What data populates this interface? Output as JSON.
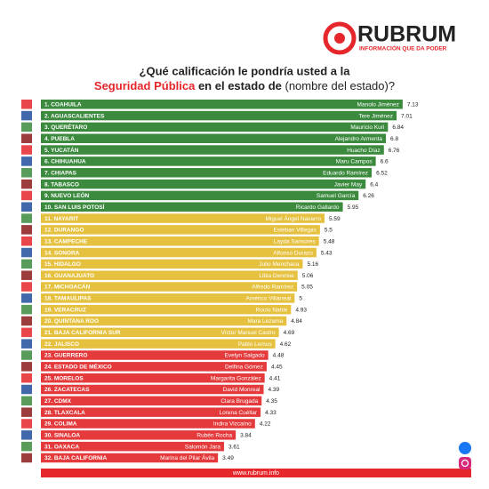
{
  "header": {
    "brand": "RUBRUM",
    "tagline": "INFORMACIÓN QUE DA PODER"
  },
  "chart_data": {
    "type": "hbar",
    "title_parts": [
      "¿Qué calificación le pondría usted a la",
      "Seguridad Pública",
      "en el estado de",
      "(nombre del estado)?"
    ],
    "categories": [
      "1. COAHUILA",
      "2. AGUASCALIENTES",
      "3. QUERÉTARO",
      "4. PUEBLA",
      "5. YUCATÁN",
      "6. CHIHUAHUA",
      "7. CHIAPAS",
      "8. TABASCO",
      "9. NUEVO LEÓN",
      "10. SAN LUIS POTOSÍ",
      "11. NAYARIT",
      "12. DURANGO",
      "13. CAMPECHE",
      "14. SONORA",
      "15. HIDALGO",
      "16. GUANAJUATO",
      "17. MICHOACÁN",
      "18. TAMAULIPAS",
      "19. VERACRUZ",
      "20. QUINTANA ROO",
      "21. BAJA CALIFORNIA SUR",
      "22. JALISCO",
      "23. GUERRERO",
      "24. ESTADO DE MÉXICO",
      "25. MORELOS",
      "26. ZACATECAS",
      "27. CDMX",
      "28. TLAXCALA",
      "29. COLIMA",
      "30. SINALOA",
      "31. OAXACA",
      "32. BAJA CALIFORNIA"
    ],
    "governors": [
      "Manolo Jiménez",
      "Tere Jiménez",
      "Mauricio Kuri",
      "Alejandro Armenta",
      "Huacho Díaz",
      "Maru Campos",
      "Eduardo Ramírez",
      "Javier May",
      "Samuel García",
      "Ricardo Gallardo",
      "Miguel Ángel Navarro",
      "Esteban Villegas",
      "Layda Sansores",
      "Alfonso Durazo",
      "Julio Menchaca",
      "Libia Dennise",
      "Alfredo Ramírez",
      "Américo Villarreal",
      "Rocío Nahle",
      "Mara Lezama",
      "Víctor Manuel Castro",
      "Pablo Lemus",
      "Evelyn Salgado",
      "Delfina Gómez",
      "Margarita González",
      "David Monreal",
      "Clara Brugada",
      "Lorena Cuéllar",
      "Indira Vizcaíno",
      "Rubén Rocha",
      "Salomón Jara",
      "Marina del Pilar Ávila"
    ],
    "values": [
      7.13,
      7.01,
      6.84,
      6.8,
      6.76,
      6.6,
      6.52,
      6.4,
      6.26,
      5.95,
      5.59,
      5.5,
      5.48,
      5.43,
      5.16,
      5.06,
      5.05,
      5,
      4.93,
      4.84,
      4.69,
      4.62,
      4.48,
      4.45,
      4.41,
      4.39,
      4.35,
      4.33,
      4.22,
      3.84,
      3.61,
      3.49
    ],
    "colors": [
      "#3b8a3e",
      "#3b8a3e",
      "#3b8a3e",
      "#3b8a3e",
      "#3b8a3e",
      "#3b8a3e",
      "#3b8a3e",
      "#3b8a3e",
      "#3b8a3e",
      "#3b8a3e",
      "#e6c13f",
      "#e6c13f",
      "#e6c13f",
      "#e6c13f",
      "#e6c13f",
      "#e6c13f",
      "#e6c13f",
      "#e6c13f",
      "#e6c13f",
      "#e6c13f",
      "#e6c13f",
      "#e6c13f",
      "#e53a3c",
      "#e53a3c",
      "#e53a3c",
      "#e53a3c",
      "#e53a3c",
      "#e53a3c",
      "#e53a3c",
      "#e53a3c",
      "#e53a3c",
      "#e53a3c"
    ],
    "xlim": [
      0,
      7.5
    ]
  },
  "footer": {
    "url": "www.rubrum.info"
  }
}
